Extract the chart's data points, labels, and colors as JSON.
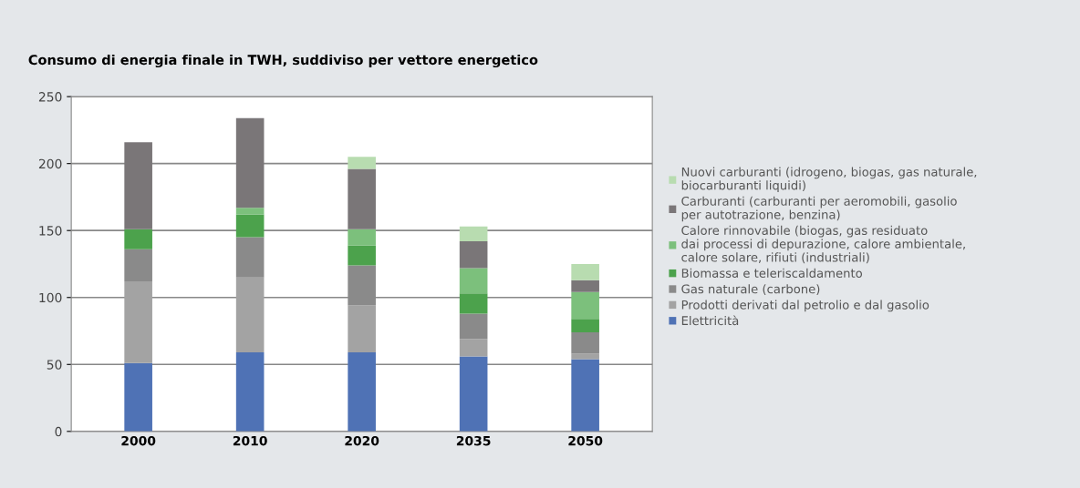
{
  "chart_data": {
    "type": "bar",
    "stacked": true,
    "title": "Consumo di energia finale in TWH, suddiviso per vettore energetico",
    "categories": [
      "2000",
      "2010",
      "2020",
      "2035",
      "2050"
    ],
    "series": [
      {
        "name": "Elettricità",
        "color": "#4f72b5",
        "values": [
          51,
          59,
          59,
          56,
          54
        ]
      },
      {
        "name": "Prodotti derivati dal petrolio e dal gasolio",
        "color": "#a3a3a3",
        "values": [
          61,
          56,
          35,
          13,
          4
        ]
      },
      {
        "name": "Gas naturale (carbone)",
        "color": "#8a8a8a",
        "values": [
          24,
          30,
          30,
          19,
          16
        ]
      },
      {
        "name": "Biomassa e teleriscaldamento",
        "color": "#4ca24c",
        "values": [
          15,
          17,
          15,
          15,
          10
        ]
      },
      {
        "name": "Calore rinnovabile (biogas, gas residuato\ndai processi di depurazione, calore ambientale,\ncalore solare, rifiuti (industriali)",
        "color": "#7cc07c",
        "values": [
          0,
          5,
          12,
          19,
          20
        ]
      },
      {
        "name": "Carburanti (carburanti per aeromobili, gasolio\nper autotrazione, benzina)",
        "color": "#7a7678",
        "values": [
          65,
          67,
          45,
          20,
          9
        ]
      },
      {
        "name": "Nuovi carburanti (idrogeno, biogas, gas naturale,\nbiocarburanti liquidi)",
        "color": "#b8dcb0",
        "values": [
          0,
          0,
          9,
          11,
          12
        ]
      }
    ],
    "ylim": [
      0,
      250
    ],
    "yticks": [
      0,
      50,
      100,
      150,
      200,
      250
    ],
    "grid": "y",
    "legend": "right"
  }
}
